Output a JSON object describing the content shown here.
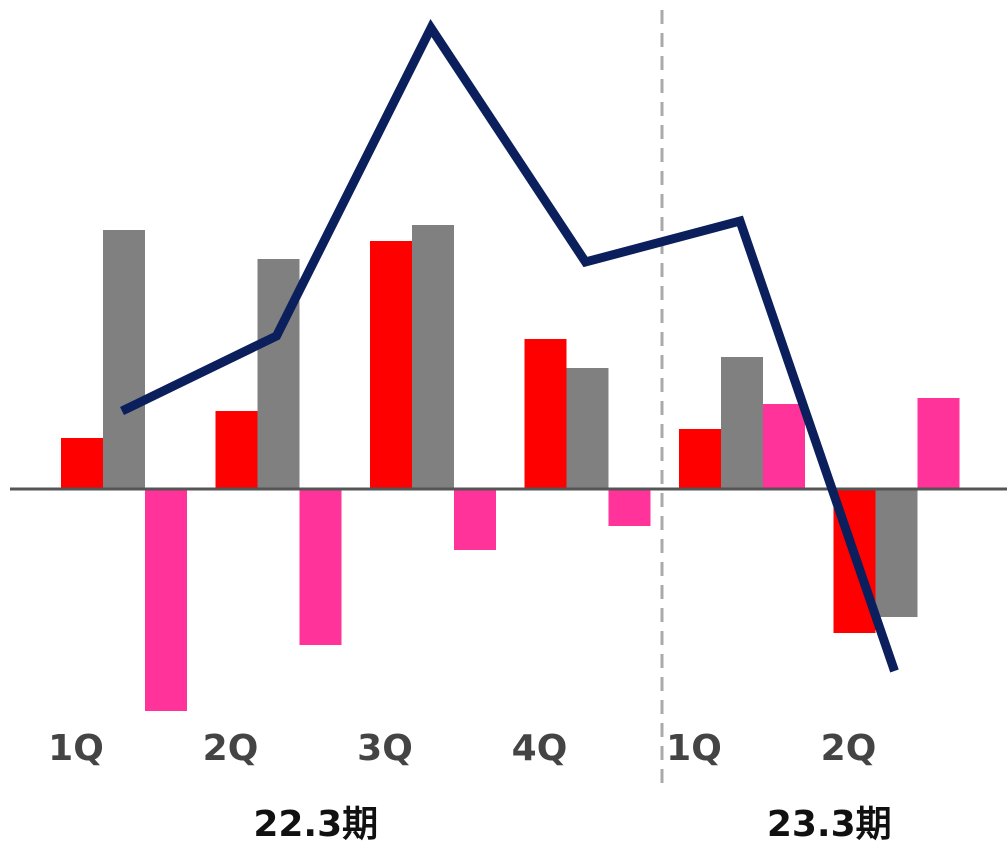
{
  "chart_data": {
    "type": "bar",
    "categories": [
      "1Q",
      "2Q",
      "3Q",
      "4Q",
      "1Q",
      "2Q"
    ],
    "groups": [
      {
        "label": "22.3期",
        "span": 4
      },
      {
        "label": "23.3期",
        "span": 2
      }
    ],
    "series": [
      {
        "color": "#ff0000",
        "values": [
          5.1,
          7.8,
          24.8,
          15.0,
          6.0,
          -14.4
        ]
      },
      {
        "color": "#808080",
        "values": [
          25.9,
          23.0,
          26.4,
          12.1,
          13.2,
          -12.8
        ]
      },
      {
        "color": "#ff3399",
        "values": [
          -22.2,
          -15.6,
          -6.1,
          -3.7,
          8.5,
          9.1
        ]
      },
      {
        "type": "line",
        "color": "#0a1f5c",
        "values": [
          7.8,
          15.3,
          46.1,
          22.7,
          26.8,
          -18.2
        ]
      }
    ],
    "ylim": [
      -30,
      48
    ]
  }
}
